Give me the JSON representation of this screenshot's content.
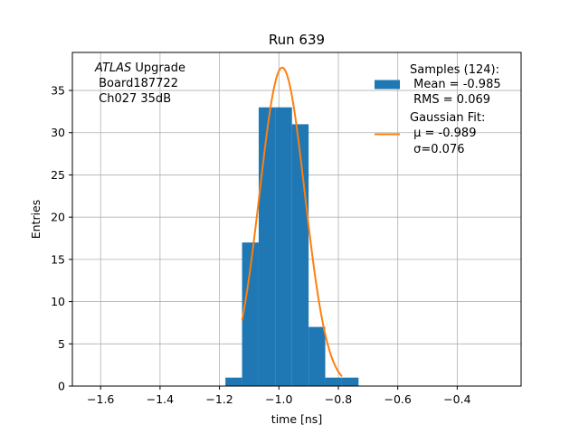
{
  "chart_data": {
    "type": "bar",
    "title": "Run 639",
    "xlabel": "time [ns]",
    "ylabel": "Entries",
    "xlim": [
      -1.695,
      -0.185
    ],
    "ylim": [
      0,
      39.5
    ],
    "xticks": [
      -1.6,
      -1.4,
      -1.2,
      -1.0,
      -0.8,
      -0.6,
      -0.4
    ],
    "xtick_labels": [
      "−1.6",
      "−1.4",
      "−1.2",
      "−1.0",
      "−0.8",
      "−0.6",
      "−0.4"
    ],
    "yticks": [
      0,
      5,
      10,
      15,
      20,
      25,
      30,
      35
    ],
    "ytick_labels": [
      "0",
      "5",
      "10",
      "15",
      "20",
      "25",
      "30",
      "35"
    ],
    "grid": true,
    "legend_location": "upper right",
    "bin_edges": [
      -1.18,
      -1.124,
      -1.068,
      -1.012,
      -0.956,
      -0.9,
      -0.844,
      -0.788,
      -0.732
    ],
    "histogram_counts": [
      1,
      17,
      33,
      33,
      31,
      7,
      1,
      1
    ],
    "series": [
      {
        "name": "Samples (124):",
        "kind": "histogram",
        "color": "#1f77b4",
        "legend_lines": [
          " Mean = -0.985",
          " RMS = 0.069"
        ]
      },
      {
        "name": "Gaussian Fit:",
        "kind": "line",
        "color": "#ff7f0e",
        "legend_lines": [
          " μ = -0.989",
          " σ=0.076"
        ],
        "amplitude": 37.7,
        "mu": -0.989,
        "sigma": 0.076,
        "x_range": [
          -1.124,
          -0.788
        ]
      }
    ],
    "annotation": {
      "italic": "ATLAS",
      "rest": " Upgrade",
      "lines": [
        " Board187722",
        " Ch027 35dB"
      ]
    }
  }
}
